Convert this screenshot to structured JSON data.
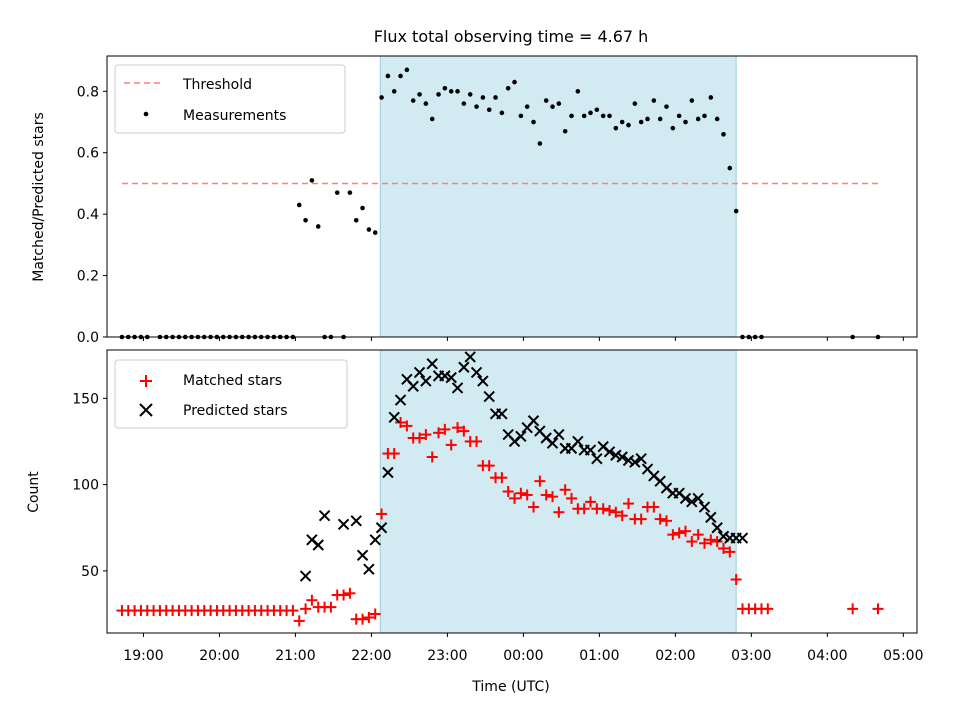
{
  "chart_data": [
    {
      "type": "scatter",
      "title": "Flux total observing time = 4.67 h",
      "ylabel": "Matched/Predicted stars",
      "xlabel": "",
      "xlim": [
        18.52,
        5.18
      ],
      "ylim": [
        0.0,
        0.915
      ],
      "yticks": [
        0.0,
        0.2,
        0.4,
        0.6,
        0.8
      ],
      "ytick_labels": [
        "0.0",
        "0.2",
        "0.4",
        "0.6",
        "0.8"
      ],
      "shaded_interval": {
        "start": "22:07",
        "end": "02:48",
        "color": "#add8e6"
      },
      "legend": {
        "position": "top-left",
        "entries": [
          "Threshold",
          "Measurements"
        ]
      },
      "threshold": {
        "name": "Threshold",
        "value": 0.5,
        "x_start": "18:43",
        "x_end": "04:40",
        "color": "#ff7f7f",
        "style": "dashed"
      },
      "series": [
        {
          "name": "Measurements",
          "color": "#000000",
          "marker": "dot",
          "x": [
            "18:43",
            "18:48",
            "18:53",
            "18:58",
            "19:03",
            "19:13",
            "19:18",
            "19:23",
            "19:28",
            "19:33",
            "19:38",
            "19:43",
            "19:48",
            "19:53",
            "19:58",
            "20:03",
            "20:08",
            "20:13",
            "20:18",
            "20:23",
            "20:28",
            "20:33",
            "20:38",
            "20:43",
            "20:48",
            "20:53",
            "20:58",
            "21:03",
            "21:08",
            "21:13",
            "21:18",
            "21:23",
            "21:28",
            "21:33",
            "21:38",
            "21:43",
            "21:48",
            "21:53",
            "21:58",
            "22:03",
            "22:08",
            "22:13",
            "22:18",
            "22:23",
            "22:28",
            "22:33",
            "22:38",
            "22:43",
            "22:48",
            "22:53",
            "22:58",
            "23:03",
            "23:08",
            "23:13",
            "23:18",
            "23:23",
            "23:28",
            "23:33",
            "23:38",
            "23:43",
            "23:48",
            "23:53",
            "23:58",
            "00:03",
            "00:08",
            "00:13",
            "00:18",
            "00:23",
            "00:28",
            "00:33",
            "00:38",
            "00:43",
            "00:48",
            "00:53",
            "00:58",
            "01:03",
            "01:08",
            "01:13",
            "01:18",
            "01:23",
            "01:28",
            "01:33",
            "01:38",
            "01:43",
            "01:48",
            "01:53",
            "01:58",
            "02:03",
            "02:08",
            "02:13",
            "02:18",
            "02:23",
            "02:28",
            "02:33",
            "02:38",
            "02:43",
            "02:48",
            "02:53",
            "02:58",
            "03:03",
            "03:08",
            "04:20",
            "04:40"
          ],
          "y": [
            0,
            0,
            0,
            0,
            0,
            0,
            0,
            0,
            0,
            0,
            0,
            0,
            0,
            0,
            0,
            0,
            0,
            0,
            0,
            0,
            0,
            0,
            0,
            0,
            0,
            0,
            0,
            0.43,
            0.38,
            0.51,
            0.36,
            0,
            0,
            0.47,
            0,
            0.47,
            0.38,
            0.42,
            0.35,
            0.34,
            0.78,
            0.85,
            0.8,
            0.85,
            0.87,
            0.77,
            0.79,
            0.76,
            0.71,
            0.79,
            0.81,
            0.8,
            0.8,
            0.76,
            0.79,
            0.75,
            0.78,
            0.74,
            0.78,
            0.73,
            0.81,
            0.83,
            0.72,
            0.75,
            0.7,
            0.63,
            0.77,
            0.75,
            0.76,
            0.67,
            0.72,
            0.8,
            0.72,
            0.73,
            0.74,
            0.72,
            0.72,
            0.68,
            0.7,
            0.69,
            0.76,
            0.7,
            0.71,
            0.77,
            0.71,
            0.75,
            0.68,
            0.72,
            0.7,
            0.77,
            0.71,
            0.72,
            0.78,
            0.71,
            0.66,
            0.55,
            0.41,
            0,
            0,
            0,
            0,
            0,
            0
          ]
        }
      ]
    },
    {
      "type": "scatter",
      "title": "",
      "xlabel": "Time (UTC)",
      "ylabel": "Count",
      "xlim": [
        18.52,
        5.18
      ],
      "ylim": [
        14,
        178
      ],
      "yticks": [
        50,
        100,
        150
      ],
      "ytick_labels": [
        "50",
        "100",
        "150"
      ],
      "xticks": [
        "19:00",
        "20:00",
        "21:00",
        "22:00",
        "23:00",
        "00:00",
        "01:00",
        "02:00",
        "03:00",
        "04:00",
        "05:00"
      ],
      "shaded_interval": {
        "start": "22:07",
        "end": "02:48",
        "color": "#add8e6"
      },
      "legend": {
        "position": "top-left",
        "entries": [
          "Matched stars",
          "Predicted stars"
        ]
      },
      "series": [
        {
          "name": "Matched stars",
          "color": "#ff0000",
          "marker": "plus",
          "x": [
            "18:43",
            "18:48",
            "18:53",
            "18:58",
            "19:03",
            "19:08",
            "19:13",
            "19:18",
            "19:23",
            "19:28",
            "19:33",
            "19:38",
            "19:43",
            "19:48",
            "19:53",
            "19:58",
            "20:03",
            "20:08",
            "20:13",
            "20:18",
            "20:23",
            "20:28",
            "20:33",
            "20:38",
            "20:43",
            "20:48",
            "20:53",
            "20:58",
            "21:03",
            "21:08",
            "21:13",
            "21:18",
            "21:23",
            "21:28",
            "21:33",
            "21:38",
            "21:43",
            "21:48",
            "21:53",
            "21:58",
            "22:03",
            "22:08",
            "22:13",
            "22:18",
            "22:23",
            "22:28",
            "22:33",
            "22:38",
            "22:43",
            "22:48",
            "22:53",
            "22:58",
            "23:03",
            "23:08",
            "23:13",
            "23:18",
            "23:23",
            "23:28",
            "23:33",
            "23:38",
            "23:43",
            "23:48",
            "23:53",
            "23:58",
            "00:03",
            "00:08",
            "00:13",
            "00:18",
            "00:23",
            "00:28",
            "00:33",
            "00:38",
            "00:43",
            "00:48",
            "00:53",
            "00:58",
            "01:03",
            "01:08",
            "01:13",
            "01:18",
            "01:23",
            "01:28",
            "01:33",
            "01:38",
            "01:43",
            "01:48",
            "01:53",
            "01:58",
            "02:03",
            "02:08",
            "02:13",
            "02:18",
            "02:23",
            "02:28",
            "02:33",
            "02:38",
            "02:43",
            "02:48",
            "02:53",
            "02:58",
            "03:03",
            "03:08",
            "03:13",
            "04:20",
            "04:40"
          ],
          "y": [
            27,
            27,
            27,
            27,
            27,
            27,
            27,
            27,
            27,
            27,
            27,
            27,
            27,
            27,
            27,
            27,
            27,
            27,
            27,
            27,
            27,
            27,
            27,
            27,
            27,
            27,
            27,
            27,
            21,
            28,
            33,
            29,
            29,
            29,
            36,
            36,
            37,
            22,
            22,
            23,
            25,
            83,
            118,
            118,
            136,
            134,
            127,
            127,
            129,
            116,
            130,
            132,
            123,
            133,
            131,
            125,
            125,
            111,
            111,
            104,
            104,
            96,
            92,
            95,
            94,
            87,
            102,
            94,
            93,
            84,
            97,
            92,
            86,
            86,
            90,
            86,
            86,
            85,
            84,
            82,
            89,
            80,
            80,
            87,
            87,
            80,
            79,
            71,
            72,
            73,
            67,
            71,
            66,
            68,
            67,
            63,
            61,
            45,
            28,
            28,
            28,
            28,
            28,
            28,
            28
          ]
        },
        {
          "name": "Predicted stars",
          "color": "#000000",
          "marker": "x",
          "x": [
            "21:08",
            "21:13",
            "21:18",
            "21:23",
            "21:38",
            "21:48",
            "21:53",
            "21:58",
            "22:03",
            "22:08",
            "22:13",
            "22:18",
            "22:23",
            "22:28",
            "22:33",
            "22:38",
            "22:43",
            "22:48",
            "22:53",
            "22:58",
            "23:03",
            "23:08",
            "23:13",
            "23:18",
            "23:23",
            "23:28",
            "23:33",
            "23:38",
            "23:43",
            "23:48",
            "23:53",
            "23:58",
            "00:03",
            "00:08",
            "00:13",
            "00:18",
            "00:23",
            "00:28",
            "00:33",
            "00:38",
            "00:43",
            "00:48",
            "00:53",
            "00:58",
            "01:03",
            "01:08",
            "01:13",
            "01:18",
            "01:23",
            "01:28",
            "01:33",
            "01:38",
            "01:43",
            "01:48",
            "01:53",
            "01:58",
            "02:03",
            "02:08",
            "02:13",
            "02:18",
            "02:23",
            "02:28",
            "02:33",
            "02:38",
            "02:43",
            "02:48",
            "02:53"
          ],
          "y": [
            47,
            68,
            65,
            82,
            77,
            79,
            59,
            51,
            68,
            75,
            107,
            139,
            149,
            161,
            157,
            165,
            160,
            170,
            163,
            163,
            162,
            156,
            168,
            174,
            165,
            160,
            151,
            141,
            141,
            129,
            125,
            128,
            133,
            137,
            131,
            127,
            124,
            129,
            121,
            121,
            125,
            120,
            120,
            115,
            122,
            119,
            117,
            116,
            114,
            113,
            115,
            109,
            105,
            102,
            98,
            95,
            95,
            92,
            90,
            92,
            87,
            81,
            75,
            70,
            69,
            69,
            69
          ]
        }
      ]
    }
  ]
}
